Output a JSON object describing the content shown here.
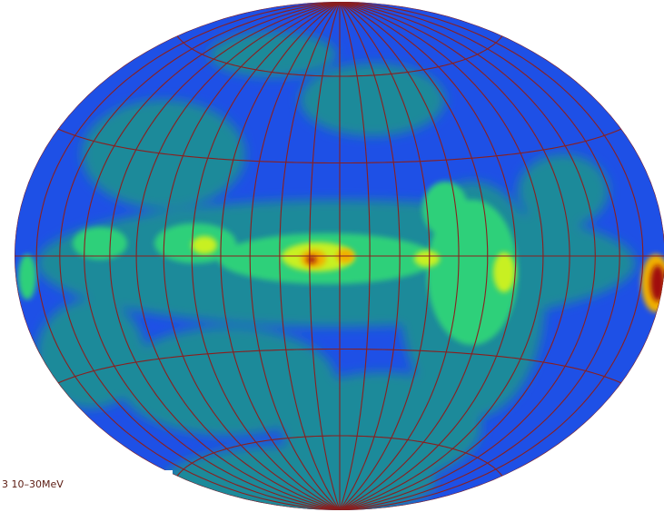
{
  "label": "3 10–30MeV"
}
